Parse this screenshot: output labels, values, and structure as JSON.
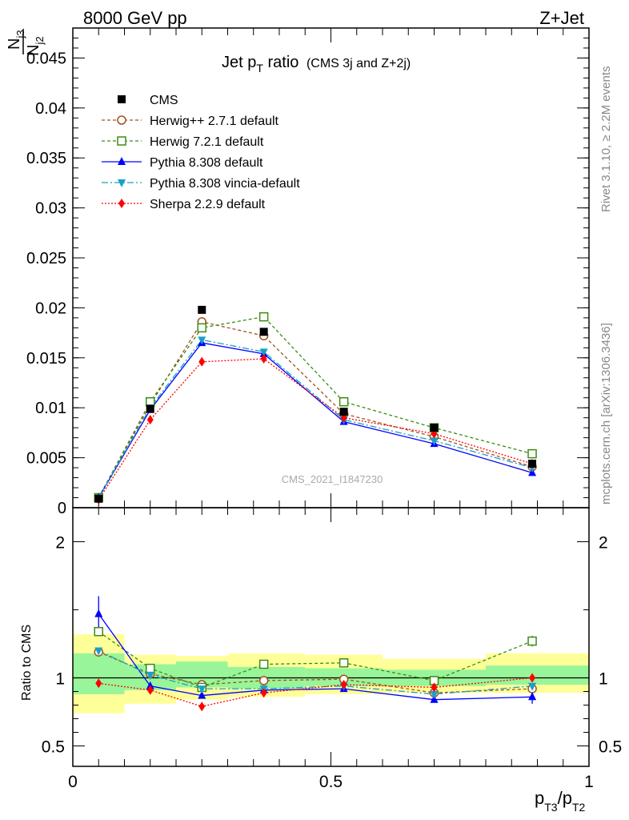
{
  "header": {
    "left_label": "8000 GeV pp",
    "right_label": "Z+Jet"
  },
  "side_labels": {
    "rivet": "Rivet 3.1.10, ≥ 2.2M events",
    "mcplots": "mcplots.cern.ch [arXiv:1306.3436]"
  },
  "chart_data": {
    "type": "line",
    "title_main": "Jet p",
    "title_sub": "T",
    "title_tail": " ratio",
    "title_note": "(CMS 3j and Z+2j)",
    "watermark": "CMS_2021_I1847230",
    "ylabel": {
      "num": "N",
      "num_sub": "j3",
      "den": "N",
      "den_sub": "j2"
    },
    "xlabel": {
      "p": "p",
      "s1": "T3",
      "slash": "/p",
      "s2": "T2"
    },
    "ratio_ylabel": "Ratio to CMS",
    "xlim": [
      0,
      1
    ],
    "ylim": [
      0,
      0.048
    ],
    "ratio_ylim": [
      0.35,
      2.25
    ],
    "x_ticks": [
      {
        "v": 0,
        "label": "0"
      },
      {
        "v": 0.5,
        "label": "0.5"
      },
      {
        "v": 1,
        "label": "1"
      }
    ],
    "y_ticks": [
      {
        "v": 0,
        "label": "0"
      },
      {
        "v": 0.005,
        "label": "0.005"
      },
      {
        "v": 0.01,
        "label": "0.01"
      },
      {
        "v": 0.015,
        "label": "0.015"
      },
      {
        "v": 0.02,
        "label": "0.02"
      },
      {
        "v": 0.025,
        "label": "0.025"
      },
      {
        "v": 0.03,
        "label": "0.03"
      },
      {
        "v": 0.035,
        "label": "0.035"
      },
      {
        "v": 0.04,
        "label": "0.04"
      },
      {
        "v": 0.045,
        "label": "0.045"
      }
    ],
    "ratio_y_ticks": [
      {
        "v": 0.5,
        "label": "0.5"
      },
      {
        "v": 1,
        "label": "1"
      },
      {
        "v": 2,
        "label": "2"
      }
    ],
    "x": [
      0.05,
      0.15,
      0.25,
      0.37,
      0.525,
      0.7,
      0.89
    ],
    "bin_edges": [
      0,
      0.1,
      0.2,
      0.3,
      0.45,
      0.6,
      0.8,
      1.0
    ],
    "band_inner": [
      [
        0.88,
        1.18
      ],
      [
        0.91,
        1.1
      ],
      [
        0.93,
        1.12
      ],
      [
        0.92,
        1.08
      ],
      [
        0.94,
        1.07
      ],
      [
        0.94,
        1.06
      ],
      [
        0.95,
        1.09
      ]
    ],
    "band_outer": [
      [
        0.74,
        1.32
      ],
      [
        0.81,
        1.17
      ],
      [
        0.84,
        1.16
      ],
      [
        0.86,
        1.18
      ],
      [
        0.88,
        1.17
      ],
      [
        0.89,
        1.14
      ],
      [
        0.89,
        1.18
      ]
    ],
    "data_series": {
      "name": "CMS",
      "color": "#000000",
      "values": [
        0.0009,
        0.0099,
        0.0198,
        0.0176,
        0.0096,
        0.008,
        0.0044
      ]
    },
    "series": [
      {
        "name": "Herwig++ 2.7.1 default",
        "color": "#a0521d",
        "dash": "4,3",
        "marker": "circle",
        "values": [
          0.001,
          0.0103,
          0.0186,
          0.0172,
          0.0094,
          0.0071,
          0.0041
        ],
        "ratio": [
          1.19,
          1.03,
          0.95,
          0.98,
          0.99,
          0.89,
          0.92
        ]
      },
      {
        "name": "Herwig 7.2.1 default",
        "color": "#3c8c14",
        "dash": "4,3",
        "marker": "square",
        "values": [
          0.001,
          0.0106,
          0.018,
          0.0191,
          0.0106,
          0.008,
          0.0054
        ],
        "ratio": [
          1.34,
          1.07,
          0.93,
          1.1,
          1.11,
          0.98,
          1.27
        ]
      },
      {
        "name": "Pythia 8.308 default",
        "color": "#0000ff",
        "dash": "",
        "marker": "triangle-up",
        "values": [
          0.001,
          0.0098,
          0.0165,
          0.0154,
          0.0086,
          0.0064,
          0.0035
        ],
        "ratio": [
          1.47,
          0.94,
          0.87,
          0.91,
          0.92,
          0.84,
          0.86
        ]
      },
      {
        "name": "Pythia 8.308 vincia-default",
        "color": "#1aa0c8",
        "dash": "8,3,2,3",
        "marker": "triangle-down",
        "values": [
          0.001,
          0.01,
          0.0168,
          0.0156,
          0.0088,
          0.0067,
          0.004
        ],
        "ratio": [
          1.2,
          1.02,
          0.92,
          0.92,
          0.94,
          0.88,
          0.94
        ]
      },
      {
        "name": "Sherpa 2.2.9 default",
        "color": "#ff0000",
        "dash": "2,2",
        "marker": "diamond",
        "values": [
          0.0008,
          0.0088,
          0.0146,
          0.0149,
          0.009,
          0.0074,
          0.0044
        ],
        "ratio": [
          0.96,
          0.91,
          0.79,
          0.89,
          0.95,
          0.93,
          1.0
        ]
      }
    ]
  }
}
